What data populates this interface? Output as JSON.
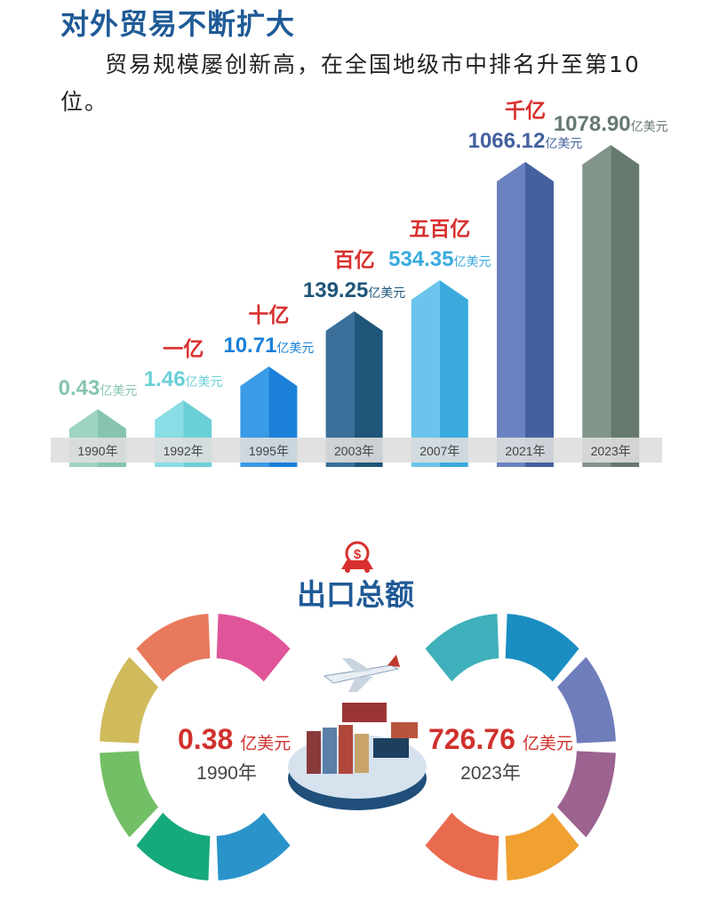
{
  "section1": {
    "title": "对外贸易不断扩大",
    "text": "贸易规模屡创新高，在全国地级市中排名升至第10位。",
    "bars": [
      {
        "year": "1990年",
        "value": "0.43",
        "unit": "亿美元"
      },
      {
        "year": "1992年",
        "value": "1.46",
        "unit": "亿美元",
        "milestone": "一亿"
      },
      {
        "year": "1995年",
        "value": "10.71",
        "unit": "亿美元",
        "milestone": "十亿"
      },
      {
        "year": "2003年",
        "value": "139.25",
        "unit": "亿美元",
        "milestone": "百亿"
      },
      {
        "year": "2007年",
        "value": "534.35",
        "unit": "亿美元",
        "milestone": "五百亿"
      },
      {
        "year": "2021年",
        "value": "1066.12",
        "unit": "亿美元",
        "milestone": "千亿"
      },
      {
        "year": "2023年",
        "value": "1078.90",
        "unit": "亿美元"
      }
    ]
  },
  "section2": {
    "title": "出口总额",
    "left": {
      "value": "0.38",
      "unit": "亿美元",
      "year": "1990年"
    },
    "right": {
      "value": "726.76",
      "unit": "亿美元",
      "year": "2023年"
    }
  }
}
